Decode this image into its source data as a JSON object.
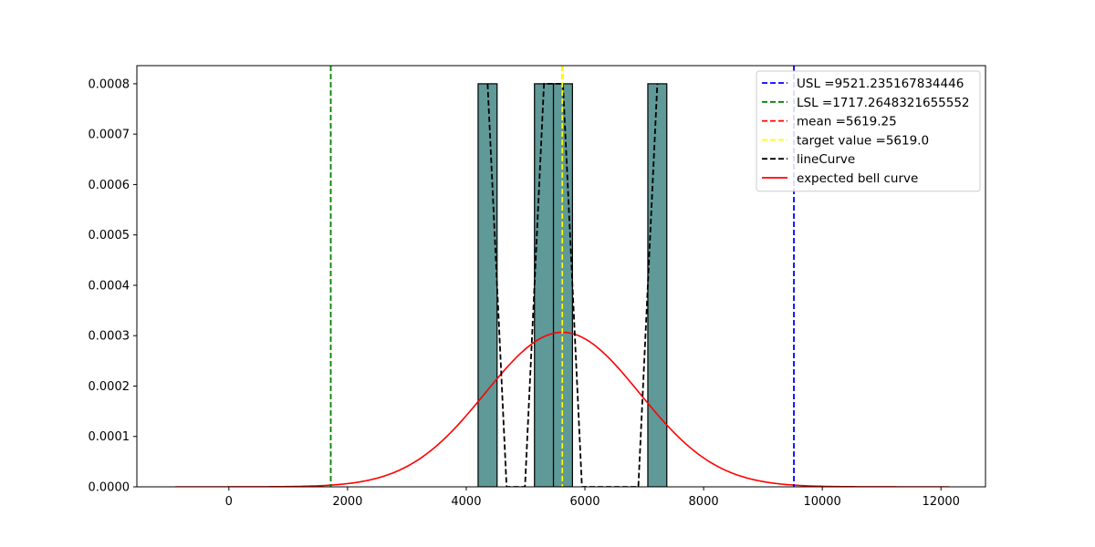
{
  "chart_data": {
    "type": "bar",
    "title": "",
    "xlabel": "",
    "ylabel": "",
    "xlim": [
      -1550,
      12750
    ],
    "ylim": [
      0,
      0.000836
    ],
    "xticks": [
      0,
      2000,
      4000,
      6000,
      8000,
      10000,
      12000
    ],
    "yticks": [
      0.0,
      0.0001,
      0.0002,
      0.0003,
      0.0004,
      0.0005,
      0.0006,
      0.0007,
      0.0008
    ],
    "ytick_labels": [
      "0.0000",
      "0.0001",
      "0.0002",
      "0.0003",
      "0.0004",
      "0.0005",
      "0.0006",
      "0.0007",
      "0.0008"
    ],
    "histogram": {
      "color": "#5f9998",
      "bins": [
        {
          "x0": 4200,
          "x1": 4520,
          "value": 0.0008
        },
        {
          "x0": 5150,
          "x1": 5470,
          "value": 0.0008
        },
        {
          "x0": 5470,
          "x1": 5790,
          "value": 0.0008
        },
        {
          "x0": 7060,
          "x1": 7380,
          "value": 0.0008
        }
      ]
    },
    "vertical_lines": [
      {
        "key": "usl",
        "x": 9521.235167834446,
        "color": "#0000ff"
      },
      {
        "key": "lsl",
        "x": 1717.2648321655552,
        "color": "#008000"
      },
      {
        "key": "mean",
        "x": 5619.25,
        "color": "#ff0000"
      },
      {
        "key": "target",
        "x": 5619.0,
        "color": "#ffff00"
      }
    ],
    "line_curve": {
      "color": "#000000",
      "x": [
        4360,
        4520,
        4680,
        4990,
        5150,
        5310,
        5470,
        5630,
        5790,
        5950,
        6900,
        7060,
        7220
      ],
      "y": [
        0.0008,
        0.0004,
        0.0,
        0.0,
        0.0004,
        0.0008,
        0.0008,
        0.0008,
        0.0004,
        0.0,
        0.0,
        0.0004,
        0.0008
      ]
    },
    "bell_curve": {
      "color": "#ff0000",
      "mean": 5619.25,
      "std": 1300.66,
      "x_range": [
        -900,
        12140
      ]
    },
    "legend": {
      "placement": "top-right",
      "entries": [
        {
          "label": "USL =9521.235167834446",
          "color": "#0000ff",
          "style": "dashed"
        },
        {
          "label": "LSL =1717.2648321655552",
          "color": "#008000",
          "style": "dashed"
        },
        {
          "label": "mean =5619.25",
          "color": "#ff0000",
          "style": "dashed"
        },
        {
          "label": "target value =5619.0",
          "color": "#ffff00",
          "style": "dashed"
        },
        {
          "label": "lineCurve",
          "color": "#000000",
          "style": "dashed"
        },
        {
          "label": "expected bell curve",
          "color": "#ff0000",
          "style": "solid"
        }
      ]
    }
  }
}
